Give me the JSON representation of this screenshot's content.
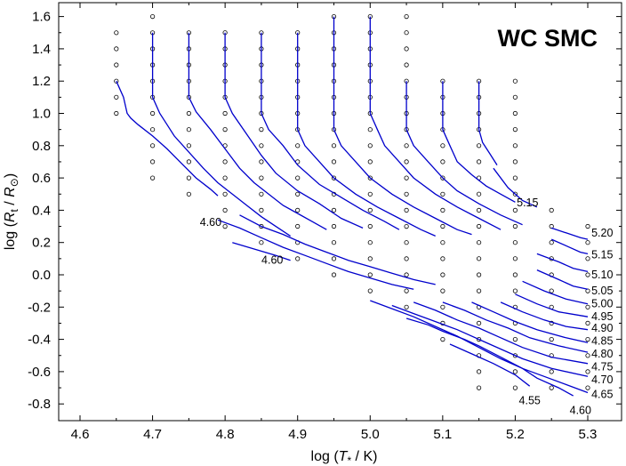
{
  "chart_data": {
    "type": "line",
    "title": "WC SMC",
    "xlabel_parts": [
      "log (",
      "T",
      "*",
      " / K)"
    ],
    "ylabel_parts": [
      "log (",
      "R",
      "t",
      " / ",
      "R",
      "⊙",
      ")"
    ],
    "xlim": [
      4.6,
      5.3
    ],
    "ylim": [
      -0.9,
      1.7
    ],
    "xticks": [
      4.6,
      4.7,
      4.8,
      4.9,
      5.0,
      5.1,
      5.2,
      5.3
    ],
    "xtick_labels": [
      "4.6",
      "4.7",
      "4.8",
      "4.9",
      "5.0",
      "5.1",
      "5.2",
      "5.3"
    ],
    "yticks": [
      -0.8,
      -0.6,
      -0.4,
      -0.2,
      0.0,
      0.2,
      0.4,
      0.6,
      0.8,
      1.0,
      1.2,
      1.4,
      1.6
    ],
    "ytick_labels": [
      "-0.8",
      "-0.6",
      "-0.4",
      "-0.2",
      "0.0",
      "0.2",
      "0.4",
      "0.6",
      "0.8",
      "1.0",
      "1.2",
      "1.4",
      "1.6"
    ],
    "grid_columns": [
      {
        "x": 4.65,
        "y_from": 1.0,
        "y_to": 1.5
      },
      {
        "x": 4.7,
        "y_from": 0.6,
        "y_to": 1.6
      },
      {
        "x": 4.75,
        "y_from": 0.5,
        "y_to": 1.5
      },
      {
        "x": 4.8,
        "y_from": 0.3,
        "y_to": 1.5
      },
      {
        "x": 4.85,
        "y_from": 0.2,
        "y_to": 1.5
      },
      {
        "x": 4.9,
        "y_from": 0.1,
        "y_to": 1.5
      },
      {
        "x": 4.95,
        "y_from": 0.0,
        "y_to": 1.6
      },
      {
        "x": 5.0,
        "y_from": -0.1,
        "y_to": 1.6
      },
      {
        "x": 5.05,
        "y_from": -0.2,
        "y_to": 1.6
      },
      {
        "x": 5.1,
        "y_from": -0.4,
        "y_to": 1.2
      },
      {
        "x": 5.15,
        "y_from": -0.7,
        "y_to": 1.2
      },
      {
        "x": 5.2,
        "y_from": -0.7,
        "y_to": 1.2
      },
      {
        "x": 5.25,
        "y_from": -0.7,
        "y_to": 0.4
      },
      {
        "x": 5.3,
        "y_from": -0.7,
        "y_to": 0.3
      }
    ],
    "grid_step": 0.1,
    "series": [
      {
        "name": "4.60",
        "points": [
          [
            4.65,
            1.2
          ],
          [
            4.66,
            1.1
          ],
          [
            4.665,
            1.0
          ],
          [
            4.67,
            0.97
          ],
          [
            4.68,
            0.93
          ],
          [
            4.7,
            0.86
          ],
          [
            4.72,
            0.78
          ],
          [
            4.74,
            0.69
          ],
          [
            4.76,
            0.6
          ],
          [
            4.78,
            0.53
          ],
          [
            4.79,
            0.49
          ]
        ]
      },
      {
        "name": "4.65",
        "points": [
          [
            4.7,
            1.5
          ],
          [
            4.7,
            1.1
          ],
          [
            4.71,
            1.0
          ],
          [
            4.72,
            0.93
          ],
          [
            4.73,
            0.86
          ],
          [
            4.75,
            0.76
          ],
          [
            4.77,
            0.66
          ],
          [
            4.79,
            0.57
          ],
          [
            4.81,
            0.5
          ],
          [
            4.83,
            0.43
          ],
          [
            4.85,
            0.36
          ],
          [
            4.87,
            0.3
          ],
          [
            4.89,
            0.24
          ]
        ]
      },
      {
        "name": "4.70",
        "points": [
          [
            4.75,
            1.5
          ],
          [
            4.75,
            1.1
          ],
          [
            4.76,
            1.01
          ],
          [
            4.78,
            0.9
          ],
          [
            4.8,
            0.78
          ],
          [
            4.82,
            0.66
          ],
          [
            4.84,
            0.57
          ],
          [
            4.86,
            0.5
          ],
          [
            4.88,
            0.43
          ],
          [
            4.9,
            0.38
          ],
          [
            4.92,
            0.33
          ],
          [
            4.94,
            0.28
          ]
        ]
      },
      {
        "name": "4.75",
        "points": [
          [
            4.8,
            1.5
          ],
          [
            4.8,
            1.1
          ],
          [
            4.81,
            1.0
          ],
          [
            4.83,
            0.87
          ],
          [
            4.85,
            0.74
          ],
          [
            4.87,
            0.63
          ],
          [
            4.9,
            0.52
          ],
          [
            4.93,
            0.44
          ],
          [
            4.96,
            0.35
          ],
          [
            4.99,
            0.29
          ]
        ]
      },
      {
        "name": "4.80",
        "points": [
          [
            4.85,
            1.5
          ],
          [
            4.85,
            1.0
          ],
          [
            4.86,
            0.9
          ],
          [
            4.88,
            0.8
          ],
          [
            4.9,
            0.68
          ],
          [
            4.93,
            0.56
          ],
          [
            4.96,
            0.48
          ],
          [
            4.99,
            0.4
          ],
          [
            5.02,
            0.33
          ],
          [
            5.04,
            0.28
          ]
        ]
      },
      {
        "name": "4.85",
        "points": [
          [
            4.9,
            1.5
          ],
          [
            4.9,
            0.9
          ],
          [
            4.91,
            0.8
          ],
          [
            4.93,
            0.7
          ],
          [
            4.95,
            0.6
          ],
          [
            4.98,
            0.5
          ],
          [
            5.01,
            0.42
          ],
          [
            5.04,
            0.35
          ],
          [
            5.07,
            0.28
          ],
          [
            5.09,
            0.24
          ]
        ]
      },
      {
        "name": "4.90",
        "points": [
          [
            4.95,
            1.6
          ],
          [
            4.95,
            0.9
          ],
          [
            4.96,
            0.8
          ],
          [
            4.98,
            0.7
          ],
          [
            5.0,
            0.6
          ],
          [
            5.03,
            0.5
          ],
          [
            5.06,
            0.42
          ],
          [
            5.09,
            0.35
          ],
          [
            5.12,
            0.28
          ],
          [
            5.14,
            0.25
          ]
        ]
      },
      {
        "name": "4.95",
        "points": [
          [
            5.0,
            1.6
          ],
          [
            5.0,
            1.0
          ],
          [
            5.01,
            0.9
          ],
          [
            5.02,
            0.8
          ],
          [
            5.04,
            0.7
          ],
          [
            5.06,
            0.6
          ],
          [
            5.09,
            0.5
          ],
          [
            5.12,
            0.42
          ],
          [
            5.15,
            0.35
          ],
          [
            5.18,
            0.28
          ]
        ]
      },
      {
        "name": "5.00",
        "points": [
          [
            5.05,
            1.2
          ],
          [
            5.05,
            0.9
          ],
          [
            5.06,
            0.8
          ],
          [
            5.08,
            0.7
          ],
          [
            5.1,
            0.6
          ],
          [
            5.12,
            0.52
          ],
          [
            5.15,
            0.44
          ],
          [
            5.18,
            0.37
          ],
          [
            5.21,
            0.31
          ]
        ]
      },
      {
        "name": "5.05",
        "points": [
          [
            5.1,
            1.2
          ],
          [
            5.1,
            0.9
          ],
          [
            5.11,
            0.8
          ],
          [
            5.12,
            0.7
          ],
          [
            5.14,
            0.62
          ],
          [
            5.16,
            0.55
          ],
          [
            5.18,
            0.5
          ],
          [
            5.2,
            0.45
          ]
        ]
      },
      {
        "name": "5.10",
        "points": [
          [
            5.15,
            1.2
          ],
          [
            5.15,
            0.9
          ],
          [
            5.155,
            0.82
          ],
          [
            5.165,
            0.75
          ],
          [
            5.175,
            0.68
          ]
        ]
      },
      {
        "name": "4.60",
        "points": [
          [
            4.79,
            0.34
          ],
          [
            4.82,
            0.29
          ],
          [
            4.85,
            0.23
          ],
          [
            4.88,
            0.17
          ],
          [
            4.91,
            0.12
          ],
          [
            4.94,
            0.07
          ],
          [
            4.97,
            0.02
          ],
          [
            5.0,
            -0.02
          ],
          [
            5.03,
            -0.06
          ],
          [
            5.06,
            -0.09
          ]
        ]
      },
      {
        "name": "4.65",
        "points": [
          [
            4.82,
            0.37
          ],
          [
            4.85,
            0.3
          ],
          [
            4.88,
            0.25
          ],
          [
            4.91,
            0.19
          ],
          [
            4.94,
            0.14
          ],
          [
            4.97,
            0.09
          ],
          [
            5.0,
            0.05
          ],
          [
            5.03,
            0.01
          ],
          [
            5.06,
            -0.03
          ],
          [
            5.09,
            -0.06
          ]
        ]
      },
      {
        "name": "4.60",
        "points": [
          [
            4.81,
            0.2
          ],
          [
            4.84,
            0.16
          ],
          [
            4.87,
            0.12
          ],
          [
            4.89,
            0.09
          ]
        ]
      },
      {
        "name": "5.15",
        "points": [
          [
            5.17,
            0.66
          ],
          [
            5.19,
            0.54
          ],
          [
            5.21,
            0.46
          ],
          [
            5.23,
            0.42
          ]
        ]
      },
      {
        "name": "5.20",
        "points": [
          [
            5.25,
            0.29
          ],
          [
            5.27,
            0.26
          ],
          [
            5.29,
            0.23
          ],
          [
            5.3,
            0.22
          ]
        ]
      },
      {
        "name": "5.15",
        "points": [
          [
            5.25,
            0.22
          ],
          [
            5.27,
            0.18
          ],
          [
            5.29,
            0.14
          ],
          [
            5.3,
            0.13
          ]
        ]
      },
      {
        "name": "5.10",
        "points": [
          [
            5.23,
            0.13
          ],
          [
            5.26,
            0.08
          ],
          [
            5.28,
            0.04
          ],
          [
            5.3,
            0.02
          ]
        ]
      },
      {
        "name": "5.05",
        "points": [
          [
            5.23,
            0.03
          ],
          [
            5.26,
            -0.03
          ],
          [
            5.28,
            -0.07
          ],
          [
            5.3,
            -0.09
          ]
        ]
      },
      {
        "name": "5.00",
        "points": [
          [
            5.21,
            -0.04
          ],
          [
            5.24,
            -0.1
          ],
          [
            5.27,
            -0.15
          ],
          [
            5.3,
            -0.18
          ]
        ]
      },
      {
        "name": "4.95",
        "points": [
          [
            5.2,
            -0.12
          ],
          [
            5.23,
            -0.18
          ],
          [
            5.26,
            -0.23
          ],
          [
            5.3,
            -0.26
          ]
        ]
      },
      {
        "name": "4.90",
        "points": [
          [
            5.18,
            -0.17
          ],
          [
            5.21,
            -0.23
          ],
          [
            5.24,
            -0.28
          ],
          [
            5.27,
            -0.32
          ],
          [
            5.3,
            -0.34
          ]
        ]
      },
      {
        "name": "4.85",
        "points": [
          [
            5.14,
            -0.17
          ],
          [
            5.17,
            -0.23
          ],
          [
            5.2,
            -0.29
          ],
          [
            5.23,
            -0.34
          ],
          [
            5.27,
            -0.39
          ],
          [
            5.3,
            -0.42
          ]
        ]
      },
      {
        "name": "4.80",
        "points": [
          [
            5.1,
            -0.17
          ],
          [
            5.13,
            -0.22
          ],
          [
            5.16,
            -0.28
          ],
          [
            5.19,
            -0.33
          ],
          [
            5.22,
            -0.39
          ],
          [
            5.26,
            -0.44
          ],
          [
            5.3,
            -0.48
          ]
        ]
      },
      {
        "name": "4.75",
        "points": [
          [
            5.06,
            -0.17
          ],
          [
            5.09,
            -0.22
          ],
          [
            5.12,
            -0.28
          ],
          [
            5.15,
            -0.33
          ],
          [
            5.18,
            -0.39
          ],
          [
            5.21,
            -0.45
          ],
          [
            5.25,
            -0.51
          ],
          [
            5.3,
            -0.55
          ]
        ]
      },
      {
        "name": "4.70",
        "points": [
          [
            5.03,
            -0.19
          ],
          [
            5.06,
            -0.24
          ],
          [
            5.09,
            -0.29
          ],
          [
            5.12,
            -0.34
          ],
          [
            5.15,
            -0.4
          ],
          [
            5.18,
            -0.46
          ],
          [
            5.21,
            -0.52
          ],
          [
            5.25,
            -0.58
          ],
          [
            5.3,
            -0.63
          ]
        ]
      },
      {
        "name": "4.65",
        "points": [
          [
            5.0,
            -0.16
          ],
          [
            5.03,
            -0.21
          ],
          [
            5.06,
            -0.26
          ],
          [
            5.09,
            -0.32
          ],
          [
            5.12,
            -0.38
          ],
          [
            5.15,
            -0.45
          ],
          [
            5.18,
            -0.52
          ],
          [
            5.21,
            -0.58
          ],
          [
            5.24,
            -0.63
          ],
          [
            5.27,
            -0.68
          ],
          [
            5.3,
            -0.73
          ]
        ]
      },
      {
        "name": "4.60",
        "points": [
          [
            5.05,
            -0.27
          ],
          [
            5.08,
            -0.31
          ],
          [
            5.1,
            -0.35
          ],
          [
            5.13,
            -0.4
          ],
          [
            5.15,
            -0.44
          ],
          [
            5.18,
            -0.51
          ],
          [
            5.21,
            -0.58
          ],
          [
            5.23,
            -0.64
          ],
          [
            5.26,
            -0.7
          ],
          [
            5.28,
            -0.75
          ]
        ]
      },
      {
        "name": "4.55",
        "points": [
          [
            5.11,
            -0.43
          ],
          [
            5.14,
            -0.49
          ],
          [
            5.17,
            -0.55
          ],
          [
            5.2,
            -0.62
          ],
          [
            5.22,
            -0.69
          ]
        ]
      }
    ],
    "contour_labels": [
      {
        "text": "4.60",
        "x": 4.795,
        "y": 0.325,
        "anchor": "end"
      },
      {
        "text": "4.60",
        "x": 4.865,
        "y": 0.09,
        "anchor": "middle"
      },
      {
        "text": "5.15",
        "x": 5.217,
        "y": 0.445,
        "anchor": "middle"
      },
      {
        "text": "5.20",
        "x": 5.305,
        "y": 0.26,
        "anchor": "start"
      },
      {
        "text": "5.15",
        "x": 5.305,
        "y": 0.125,
        "anchor": "start"
      },
      {
        "text": "5.10",
        "x": 5.305,
        "y": 0.0,
        "anchor": "start"
      },
      {
        "text": "5.05",
        "x": 5.305,
        "y": -0.1,
        "anchor": "start"
      },
      {
        "text": "5.00",
        "x": 5.305,
        "y": -0.18,
        "anchor": "start"
      },
      {
        "text": "4.95",
        "x": 5.305,
        "y": -0.26,
        "anchor": "start"
      },
      {
        "text": "4.90",
        "x": 5.305,
        "y": -0.33,
        "anchor": "start"
      },
      {
        "text": "4.85",
        "x": 5.305,
        "y": -0.41,
        "anchor": "start"
      },
      {
        "text": "4.80",
        "x": 5.305,
        "y": -0.49,
        "anchor": "start"
      },
      {
        "text": "4.75",
        "x": 5.305,
        "y": -0.57,
        "anchor": "start"
      },
      {
        "text": "4.70",
        "x": 5.305,
        "y": -0.65,
        "anchor": "start"
      },
      {
        "text": "4.65",
        "x": 5.305,
        "y": -0.74,
        "anchor": "start"
      },
      {
        "text": "4.55",
        "x": 5.22,
        "y": -0.78,
        "anchor": "middle"
      },
      {
        "text": "4.60",
        "x": 5.29,
        "y": -0.84,
        "anchor": "middle"
      }
    ],
    "grid": false,
    "legend": "none",
    "line_color": "#0000cc",
    "marker_color": "#000000"
  }
}
